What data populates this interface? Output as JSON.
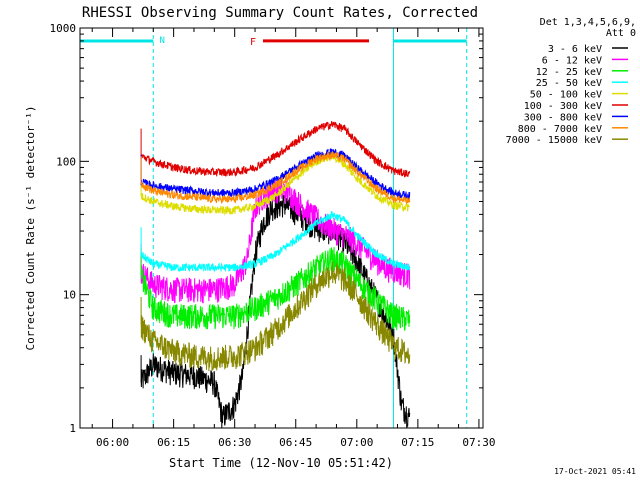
{
  "colors": {
    "background": "#ffffff",
    "axis": "#000000",
    "cyan_markers": "#00e5e5",
    "flare_bar": "#e00000"
  },
  "chart_data": {
    "type": "line",
    "title": "RHESSI Observing Summary Count Rates, Corrected",
    "xlabel": "Start Time (12-Nov-10 05:51:42)",
    "ylabel": "Corrected Count Rate (s⁻¹ detector⁻¹)",
    "y_scale": "log",
    "ylim": [
      1,
      1000
    ],
    "xlim": [
      "05:52",
      "07:31"
    ],
    "x_ticks": [
      "06:00",
      "06:15",
      "06:30",
      "06:45",
      "07:00",
      "07:15",
      "07:30"
    ],
    "y_ticks": [
      "1",
      "10",
      "100",
      "1000"
    ],
    "legend_header": [
      "Det 1,3,4,5,6,9,",
      "Att 0"
    ],
    "legend_placement": "right",
    "timestamp": "17-Oct-2021 05:41",
    "annotations": [
      {
        "label": "N",
        "color": "#00e5e5",
        "type": "night",
        "x": [
          "05:52",
          "06:10"
        ]
      },
      {
        "label": "",
        "color": "#00e5e5",
        "type": "night",
        "x": [
          "07:09",
          "07:27"
        ]
      },
      {
        "label": "F",
        "color": "#e00000",
        "type": "flare",
        "x": [
          "06:34",
          "07:03"
        ],
        "y": 800
      }
    ],
    "data_window": [
      "06:07",
      "07:13"
    ],
    "series": [
      {
        "name": "3 - 6 keV",
        "color": "#000000",
        "points": [
          [
            "06:07",
            2.2
          ],
          [
            "06:10",
            3.0
          ],
          [
            "06:15",
            2.6
          ],
          [
            "06:20",
            2.5
          ],
          [
            "06:25",
            2.2
          ],
          [
            "06:27",
            1.2
          ],
          [
            "06:30",
            1.5
          ],
          [
            "06:32",
            2.5
          ],
          [
            "06:34",
            10
          ],
          [
            "06:35",
            20
          ],
          [
            "06:37",
            35
          ],
          [
            "06:39",
            45
          ],
          [
            "06:42",
            48
          ],
          [
            "06:45",
            42
          ],
          [
            "06:48",
            35
          ],
          [
            "06:51",
            31
          ],
          [
            "06:54",
            30
          ],
          [
            "06:57",
            25
          ],
          [
            "07:00",
            18
          ],
          [
            "07:03",
            12
          ],
          [
            "07:06",
            8
          ],
          [
            "07:09",
            5
          ],
          [
            "07:11",
            1.5
          ],
          [
            "07:13",
            1.2
          ]
        ]
      },
      {
        "name": "6 - 12 keV",
        "color": "#ff00ff",
        "points": [
          [
            "06:07",
            15
          ],
          [
            "06:10",
            12
          ],
          [
            "06:15",
            11
          ],
          [
            "06:20",
            11
          ],
          [
            "06:25",
            11
          ],
          [
            "06:30",
            12
          ],
          [
            "06:33",
            18
          ],
          [
            "06:35",
            45
          ],
          [
            "06:37",
            55
          ],
          [
            "06:40",
            62
          ],
          [
            "06:43",
            60
          ],
          [
            "06:46",
            48
          ],
          [
            "06:49",
            40
          ],
          [
            "06:52",
            34
          ],
          [
            "06:55",
            30
          ],
          [
            "06:58",
            27
          ],
          [
            "07:01",
            23
          ],
          [
            "07:04",
            19
          ],
          [
            "07:07",
            16
          ],
          [
            "07:10",
            15
          ],
          [
            "07:13",
            14
          ]
        ]
      },
      {
        "name": "12 - 25 keV",
        "color": "#00ee00",
        "points": [
          [
            "06:07",
            14
          ],
          [
            "06:10",
            8
          ],
          [
            "06:15",
            7
          ],
          [
            "06:20",
            7
          ],
          [
            "06:25",
            7
          ],
          [
            "06:30",
            7
          ],
          [
            "06:35",
            8
          ],
          [
            "06:40",
            9.5
          ],
          [
            "06:45",
            12
          ],
          [
            "06:50",
            16
          ],
          [
            "06:54",
            19
          ],
          [
            "06:57",
            17
          ],
          [
            "07:00",
            13
          ],
          [
            "07:05",
            9
          ],
          [
            "07:09",
            7
          ],
          [
            "07:13",
            6.5
          ]
        ]
      },
      {
        "name": "25 - 50 keV",
        "color": "#00ffff",
        "points": [
          [
            "06:07",
            20
          ],
          [
            "06:10",
            17
          ],
          [
            "06:15",
            16
          ],
          [
            "06:20",
            16
          ],
          [
            "06:25",
            16
          ],
          [
            "06:30",
            16
          ],
          [
            "06:35",
            17
          ],
          [
            "06:40",
            20
          ],
          [
            "06:45",
            26
          ],
          [
            "06:50",
            34
          ],
          [
            "06:54",
            40
          ],
          [
            "06:57",
            36
          ],
          [
            "07:00",
            28
          ],
          [
            "07:05",
            20
          ],
          [
            "07:09",
            17
          ],
          [
            "07:13",
            16
          ]
        ]
      },
      {
        "name": "50 - 100 keV",
        "color": "#dddd00",
        "points": [
          [
            "06:07",
            55
          ],
          [
            "06:10",
            50
          ],
          [
            "06:15",
            46
          ],
          [
            "06:20",
            44
          ],
          [
            "06:25",
            43
          ],
          [
            "06:30",
            43
          ],
          [
            "06:35",
            46
          ],
          [
            "06:40",
            55
          ],
          [
            "06:45",
            75
          ],
          [
            "06:50",
            100
          ],
          [
            "06:54",
            110
          ],
          [
            "06:57",
            95
          ],
          [
            "07:00",
            75
          ],
          [
            "07:05",
            55
          ],
          [
            "07:09",
            47
          ],
          [
            "07:13",
            45
          ]
        ]
      },
      {
        "name": "100 - 300 keV",
        "color": "#e00000",
        "points": [
          [
            "06:07",
            110
          ],
          [
            "06:10",
            100
          ],
          [
            "06:15",
            90
          ],
          [
            "06:20",
            85
          ],
          [
            "06:25",
            83
          ],
          [
            "06:30",
            83
          ],
          [
            "06:35",
            90
          ],
          [
            "06:40",
            110
          ],
          [
            "06:45",
            140
          ],
          [
            "06:50",
            175
          ],
          [
            "06:54",
            190
          ],
          [
            "06:57",
            175
          ],
          [
            "07:00",
            140
          ],
          [
            "07:05",
            100
          ],
          [
            "07:09",
            85
          ],
          [
            "07:13",
            80
          ]
        ]
      },
      {
        "name": "300 - 800 keV",
        "color": "#0000ff",
        "points": [
          [
            "06:07",
            70
          ],
          [
            "06:10",
            66
          ],
          [
            "06:15",
            62
          ],
          [
            "06:20",
            60
          ],
          [
            "06:25",
            58
          ],
          [
            "06:30",
            58
          ],
          [
            "06:35",
            62
          ],
          [
            "06:40",
            72
          ],
          [
            "06:45",
            90
          ],
          [
            "06:50",
            110
          ],
          [
            "06:54",
            118
          ],
          [
            "06:57",
            110
          ],
          [
            "07:00",
            90
          ],
          [
            "07:05",
            68
          ],
          [
            "07:09",
            58
          ],
          [
            "07:13",
            55
          ]
        ]
      },
      {
        "name": "800 - 7000 keV",
        "color": "#ff8800",
        "points": [
          [
            "06:07",
            68
          ],
          [
            "06:10",
            60
          ],
          [
            "06:15",
            56
          ],
          [
            "06:20",
            54
          ],
          [
            "06:25",
            52
          ],
          [
            "06:30",
            52
          ],
          [
            "06:35",
            56
          ],
          [
            "06:40",
            66
          ],
          [
            "06:45",
            84
          ],
          [
            "06:50",
            105
          ],
          [
            "06:54",
            112
          ],
          [
            "06:57",
            104
          ],
          [
            "07:00",
            84
          ],
          [
            "07:05",
            62
          ],
          [
            "07:09",
            53
          ],
          [
            "07:13",
            50
          ]
        ]
      },
      {
        "name": "7000 - 15000 keV",
        "color": "#888800",
        "points": [
          [
            "06:07",
            6
          ],
          [
            "06:10",
            4.5
          ],
          [
            "06:15",
            3.8
          ],
          [
            "06:20",
            3.5
          ],
          [
            "06:25",
            3.4
          ],
          [
            "06:30",
            3.5
          ],
          [
            "06:35",
            4
          ],
          [
            "06:40",
            5.5
          ],
          [
            "06:45",
            8
          ],
          [
            "06:50",
            12
          ],
          [
            "06:54",
            15
          ],
          [
            "06:57",
            13
          ],
          [
            "07:00",
            10
          ],
          [
            "07:05",
            6
          ],
          [
            "07:09",
            4.2
          ],
          [
            "07:13",
            3.5
          ]
        ]
      }
    ]
  }
}
